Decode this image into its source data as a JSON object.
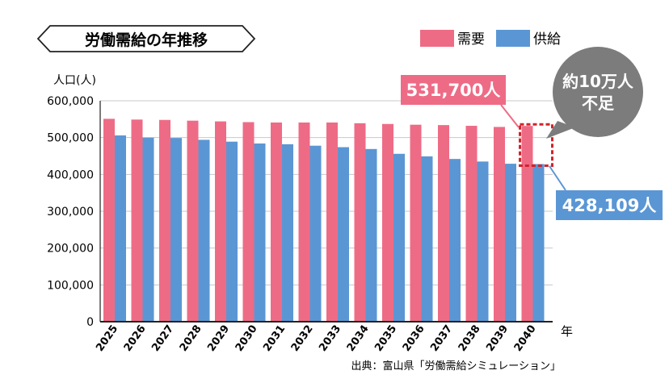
{
  "chart_data": {
    "type": "bar",
    "title": "労働需給の年推移",
    "ylabel": "人口(人)",
    "xlabel": "年",
    "ylim": [
      0,
      600000
    ],
    "y_ticks": [
      "0",
      "100,000",
      "200,000",
      "300,000",
      "400,000",
      "500,000",
      "600,000"
    ],
    "y_tick_values": [
      0,
      100000,
      200000,
      300000,
      400000,
      500000,
      600000
    ],
    "grid": true,
    "legend_position": "top-right",
    "categories": [
      "2025",
      "2026",
      "2027",
      "2028",
      "2029",
      "2030",
      "2031",
      "2032",
      "2033",
      "2034",
      "2035",
      "2036",
      "2037",
      "2038",
      "2039",
      "2040"
    ],
    "series": [
      {
        "name": "需要",
        "color": "#ee6b86",
        "values": [
          551000,
          549000,
          548000,
          546000,
          544000,
          542000,
          541000,
          541000,
          541000,
          539000,
          537000,
          535000,
          534000,
          532000,
          529000,
          531700
        ]
      },
      {
        "name": "供給",
        "color": "#5b96d4",
        "values": [
          506000,
          500000,
          499000,
          494000,
          489000,
          484000,
          482000,
          478000,
          474000,
          469000,
          456000,
          449000,
          442000,
          435000,
          429000,
          428109
        ]
      }
    ],
    "annotations": {
      "demand_label": "531,700人",
      "supply_label": "428,109人",
      "shortage_line1": "約10万人",
      "shortage_line2": "不足"
    },
    "source": "出典：富山県「労働需給シミュレーション」"
  }
}
